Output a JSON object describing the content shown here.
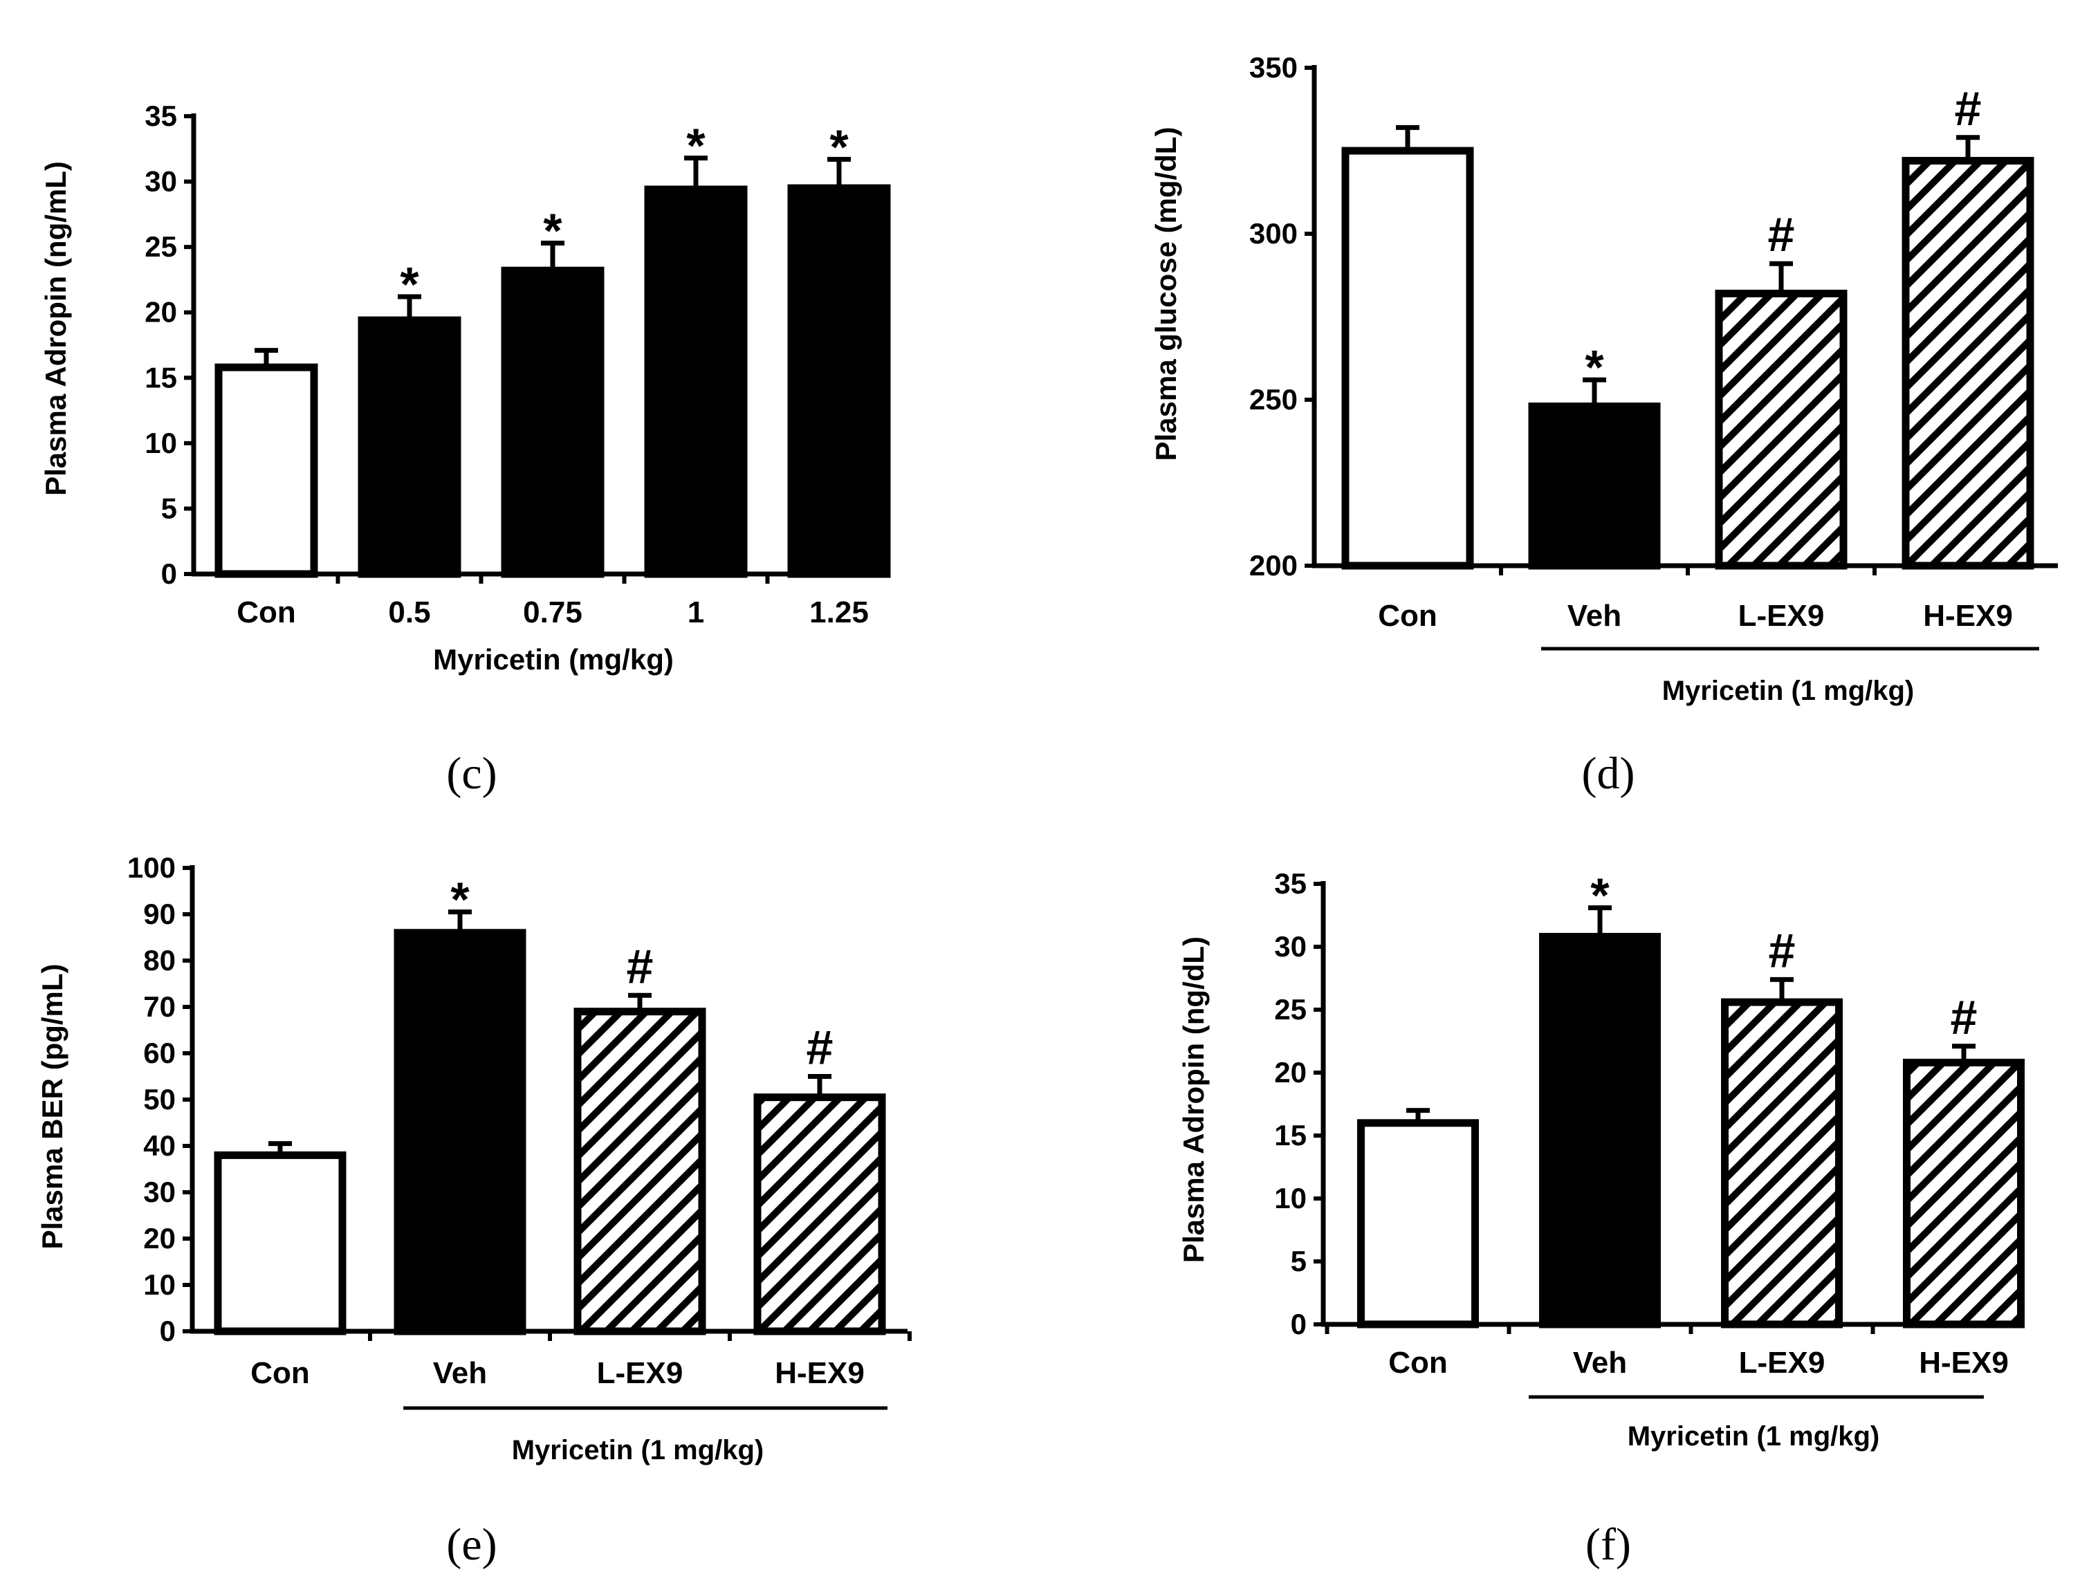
{
  "colors": {
    "ink": "#000000",
    "paper": "#ffffff"
  },
  "chart_data": [
    {
      "type": "bar",
      "panel": "(c)",
      "ylabel": "Plasma Adropin (ng/mL)",
      "xlabel": "Myricetin (mg/kg)",
      "ylim": [
        0,
        35
      ],
      "yticks": [
        "0",
        "5",
        "10",
        "15",
        "20",
        "25",
        "30",
        "35"
      ],
      "categories": [
        "Con",
        "0.5",
        "0.75",
        "1",
        "1.25"
      ],
      "values": [
        15.8,
        19.4,
        23.2,
        29.4,
        29.5
      ],
      "errors": [
        1.3,
        1.8,
        2.1,
        2.4,
        2.2
      ],
      "fills": [
        "white",
        "black",
        "black",
        "black",
        "black"
      ],
      "marks": [
        "",
        "*",
        "*",
        "*",
        "*"
      ],
      "group_label": "",
      "grid": false
    },
    {
      "type": "bar",
      "panel": "(d)",
      "ylabel": "Plasma glucose (mg/dL)",
      "xlabel": "",
      "ylim": [
        200,
        350
      ],
      "yticks": [
        "200",
        "250",
        "300",
        "350"
      ],
      "categories": [
        "Con",
        "Veh",
        "L-EX9",
        "H-EX9"
      ],
      "values": [
        325,
        248,
        282,
        322
      ],
      "errors": [
        7,
        8,
        9,
        7
      ],
      "fills": [
        "white",
        "black",
        "hatch",
        "hatch"
      ],
      "marks": [
        "",
        "*",
        "#",
        "#"
      ],
      "group_label": "Myricetin (1 mg/kg)",
      "grid": false
    },
    {
      "type": "bar",
      "panel": "(e)",
      "ylabel": "Plasma BER (pg/mL)",
      "xlabel": "",
      "ylim": [
        0,
        100
      ],
      "yticks": [
        "0",
        "10",
        "20",
        "30",
        "40",
        "50",
        "60",
        "70",
        "80",
        "90",
        "100"
      ],
      "categories": [
        "Con",
        "Veh",
        "L-EX9",
        "H-EX9"
      ],
      "values": [
        38,
        86,
        69,
        50.5
      ],
      "errors": [
        2.5,
        4.5,
        3.5,
        4.5
      ],
      "fills": [
        "white",
        "black",
        "hatch",
        "hatch"
      ],
      "marks": [
        "",
        "*",
        "#",
        "#"
      ],
      "group_label": "Myricetin (1 mg/kg)",
      "grid": false
    },
    {
      "type": "bar",
      "panel": "(f)",
      "ylabel": "Plasma Adropin (ng/dL)",
      "xlabel": "",
      "ylim": [
        0,
        35
      ],
      "yticks": [
        "0",
        "5",
        "10",
        "15",
        "20",
        "25",
        "30",
        "35"
      ],
      "categories": [
        "Con",
        "Veh",
        "L-EX9",
        "H-EX9"
      ],
      "values": [
        16,
        30.8,
        25.6,
        20.8
      ],
      "errors": [
        1,
        2.3,
        1.8,
        1.3
      ],
      "fills": [
        "white",
        "black",
        "hatch",
        "hatch"
      ],
      "marks": [
        "",
        "*",
        "#",
        "#"
      ],
      "group_label": "Myricetin (1 mg/kg)",
      "grid": false
    }
  ]
}
